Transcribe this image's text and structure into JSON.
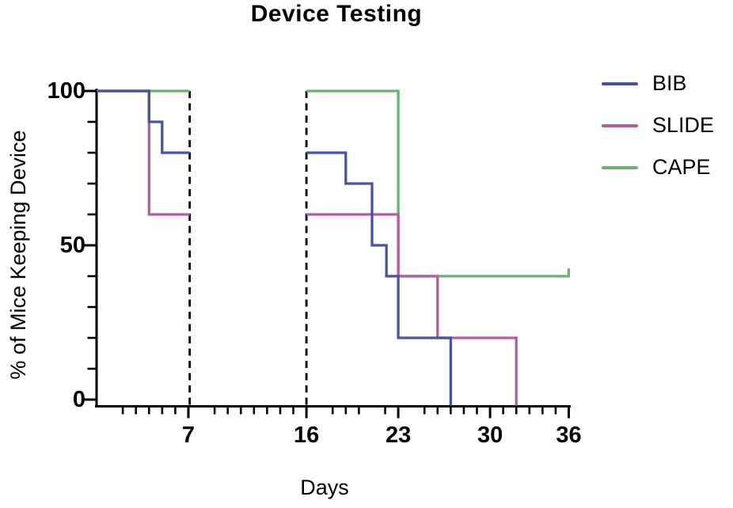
{
  "title": "Device Testing",
  "axes": {
    "x": {
      "label": "Days",
      "major_ticks": [
        {
          "day": 7,
          "label": "7"
        },
        {
          "day": 16,
          "label": "16"
        },
        {
          "day": 23,
          "label": "23"
        },
        {
          "day": 30,
          "label": "30"
        },
        {
          "day": 36,
          "label": "36"
        }
      ],
      "minor_tick_days": [
        2,
        3,
        4,
        5,
        6,
        9,
        10,
        11,
        12,
        13,
        14,
        15,
        18,
        19,
        20,
        22,
        25,
        26,
        27,
        28,
        29,
        31,
        32,
        33,
        34,
        35
      ]
    },
    "y": {
      "label": "% of Mice Keeping Device",
      "major_ticks": [
        {
          "pct": 100,
          "label": "100"
        },
        {
          "pct": 50,
          "label": "50"
        },
        {
          "pct": 0,
          "label": "0"
        }
      ],
      "minor_tick_pcts": [
        10,
        20,
        30,
        40,
        60,
        70,
        80,
        90
      ]
    }
  },
  "dashed_vlines_days": [
    7.1,
    16
  ],
  "legend": {
    "items": [
      {
        "label": "BIB",
        "color": "#4753a5"
      },
      {
        "label": "SLIDE",
        "color": "#b75aa4"
      },
      {
        "label": "CAPE",
        "color": "#68b274"
      }
    ]
  },
  "chart_data": {
    "type": "line",
    "subtype": "kaplan-meier-step-curve",
    "title": "Device Testing",
    "xlabel": "Days",
    "ylabel": "% of Mice Keeping Device",
    "xlim": [
      0,
      36
    ],
    "ylim": [
      0,
      100
    ],
    "x_major_ticks": [
      7,
      16,
      23,
      30,
      36
    ],
    "y_major_ticks": [
      0,
      50,
      100
    ],
    "x_axis_break_between_days": [
      7,
      16
    ],
    "dashed_reference_lines_at_days": [
      7,
      16
    ],
    "grid": false,
    "legend_position": "top-right",
    "series": [
      {
        "name": "BIB",
        "color": "#4753a5",
        "segments": [
          [
            [
              0,
              100
            ],
            [
              4,
              100
            ],
            [
              4,
              90
            ],
            [
              5,
              90
            ],
            [
              5,
              80
            ],
            [
              7.1,
              80
            ]
          ],
          [
            [
              16,
              80
            ],
            [
              19,
              80
            ],
            [
              19,
              70
            ],
            [
              21,
              70
            ],
            [
              21,
              50
            ],
            [
              22.1,
              50
            ],
            [
              22.1,
              40
            ],
            [
              23,
              40
            ],
            [
              23,
              20
            ],
            [
              27,
              20
            ],
            [
              27,
              0
            ]
          ]
        ]
      },
      {
        "name": "SLIDE",
        "color": "#b75aa4",
        "segments": [
          [
            [
              0,
              100
            ],
            [
              4,
              100
            ],
            [
              4,
              60
            ],
            [
              7.1,
              60
            ]
          ],
          [
            [
              16,
              60
            ],
            [
              23,
              60
            ],
            [
              23,
              40
            ],
            [
              26,
              40
            ],
            [
              26,
              20
            ],
            [
              32,
              20
            ],
            [
              32,
              0
            ]
          ]
        ]
      },
      {
        "name": "CAPE",
        "color": "#68b274",
        "segments": [
          [
            [
              0,
              100
            ],
            [
              7.1,
              100
            ]
          ],
          [
            [
              16,
              100
            ],
            [
              23,
              100
            ],
            [
              23,
              40
            ],
            [
              36,
              40
            ],
            [
              36,
              42.5
            ]
          ]
        ]
      }
    ]
  }
}
